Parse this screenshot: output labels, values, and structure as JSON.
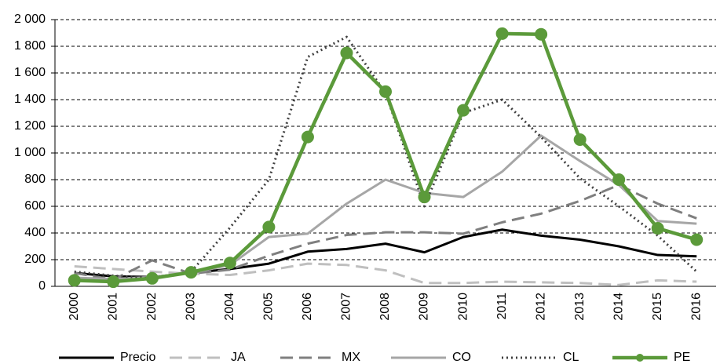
{
  "chart_data": {
    "type": "line",
    "categories": [
      "2000",
      "2001",
      "2002",
      "2003",
      "2004",
      "2005",
      "2006",
      "2007",
      "2008",
      "2009",
      "2010",
      "2011",
      "2012",
      "2013",
      "2014",
      "2015",
      "2016"
    ],
    "series": [
      {
        "name": "Precio",
        "color": "#000000",
        "style": "solid",
        "values": [
          100,
          75,
          70,
          100,
          130,
          170,
          260,
          280,
          320,
          255,
          370,
          425,
          380,
          350,
          300,
          235,
          225
        ]
      },
      {
        "name": "JA",
        "color": "#bfbfbf",
        "style": "dashed",
        "values": [
          150,
          130,
          110,
          95,
          85,
          120,
          170,
          160,
          120,
          25,
          25,
          35,
          30,
          25,
          10,
          45,
          35
        ]
      },
      {
        "name": "MX",
        "color": "#7f7f7f",
        "style": "dashed",
        "values": [
          100,
          50,
          195,
          95,
          125,
          230,
          320,
          385,
          405,
          405,
          395,
          480,
          545,
          640,
          760,
          620,
          510
        ]
      },
      {
        "name": "CO",
        "color": "#a6a6a6",
        "style": "solid",
        "values": [
          65,
          55,
          70,
          100,
          160,
          370,
          395,
          620,
          800,
          700,
          670,
          860,
          1130,
          940,
          760,
          490,
          470
        ]
      },
      {
        "name": "CL",
        "color": "#404040",
        "style": "dotted",
        "values": [
          110,
          80,
          60,
          110,
          440,
          800,
          1720,
          1870,
          1450,
          600,
          1300,
          1400,
          1120,
          810,
          600,
          380,
          110
        ]
      },
      {
        "name": "PE",
        "color": "#5b9a3a",
        "style": "markers",
        "values": [
          45,
          35,
          60,
          105,
          175,
          445,
          1120,
          1750,
          1460,
          670,
          1320,
          1895,
          1890,
          1100,
          800,
          435,
          350
        ]
      }
    ],
    "ylim": [
      0,
      2000
    ],
    "yticks": [
      0,
      200,
      400,
      600,
      800,
      {
        "value": 1000,
        "label": "1 000"
      },
      {
        "value": 1200,
        "label": "1 200"
      },
      {
        "value": 1400,
        "label": "1 400"
      },
      {
        "value": 1600,
        "label": "1 600"
      },
      {
        "value": 1800,
        "label": "1 800"
      },
      {
        "value": 2000,
        "label": "2 000"
      }
    ],
    "grid": true,
    "legend": "bottom"
  }
}
